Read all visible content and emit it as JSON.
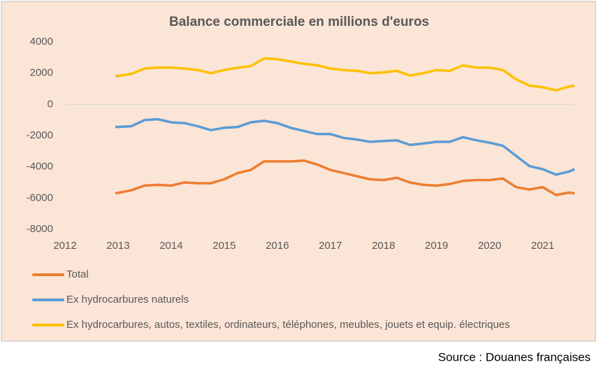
{
  "chart_data": {
    "type": "line",
    "title": "Balance commerciale en millions d'euros",
    "source": "Source : Douanes françaises",
    "x": [
      2012.95,
      2013.25,
      2013.5,
      2013.75,
      2014,
      2014.25,
      2014.5,
      2014.75,
      2015,
      2015.25,
      2015.5,
      2015.75,
      2016,
      2016.25,
      2016.5,
      2016.75,
      2017,
      2017.25,
      2017.5,
      2017.75,
      2018,
      2018.25,
      2018.5,
      2018.75,
      2019,
      2019.25,
      2019.5,
      2019.75,
      2020,
      2020.25,
      2020.5,
      2020.75,
      2021,
      2021.25,
      2021.5,
      2021.6
    ],
    "series": [
      {
        "name": "Total",
        "color": "#ed7d31",
        "values": [
          -5700,
          -5500,
          -5200,
          -5150,
          -5200,
          -5000,
          -5050,
          -5050,
          -4800,
          -4400,
          -4200,
          -3650,
          -3650,
          -3650,
          -3600,
          -3850,
          -4200,
          -4400,
          -4600,
          -4800,
          -4850,
          -4700,
          -5000,
          -5150,
          -5200,
          -5100,
          -4900,
          -4850,
          -4850,
          -4750,
          -5300,
          -5450,
          -5300,
          -5800,
          -5650,
          -5700
        ]
      },
      {
        "name": "Ex hydrocarbures naturels",
        "color": "#5b9bd5",
        "values": [
          -1450,
          -1400,
          -1000,
          -950,
          -1150,
          -1200,
          -1400,
          -1650,
          -1500,
          -1450,
          -1150,
          -1050,
          -1200,
          -1500,
          -1700,
          -1900,
          -1900,
          -2150,
          -2250,
          -2400,
          -2350,
          -2300,
          -2600,
          -2500,
          -2400,
          -2400,
          -2100,
          -2300,
          -2450,
          -2650,
          -3300,
          -3950,
          -4150,
          -4500,
          -4300,
          -4150
        ]
      },
      {
        "name": "Ex hydrocarbures, autos, textiles, ordinateurs, téléphones, meubles, jouets et equip. électriques",
        "color": "#ffc000",
        "values": [
          1800,
          1950,
          2300,
          2350,
          2350,
          2300,
          2200,
          2000,
          2200,
          2350,
          2450,
          2950,
          2900,
          2750,
          2600,
          2500,
          2300,
          2200,
          2150,
          2000,
          2050,
          2150,
          1850,
          2000,
          2200,
          2150,
          2500,
          2350,
          2350,
          2200,
          1600,
          1200,
          1100,
          900,
          1150,
          1200
        ]
      }
    ],
    "xlim": [
      2012,
      2021.6
    ],
    "xticks": [
      2012,
      2013,
      2014,
      2015,
      2016,
      2017,
      2018,
      2019,
      2020,
      2021
    ],
    "ylim": [
      -8000,
      4000
    ],
    "yticks": [
      -8000,
      -6000,
      -4000,
      -2000,
      0,
      2000,
      4000
    ]
  }
}
